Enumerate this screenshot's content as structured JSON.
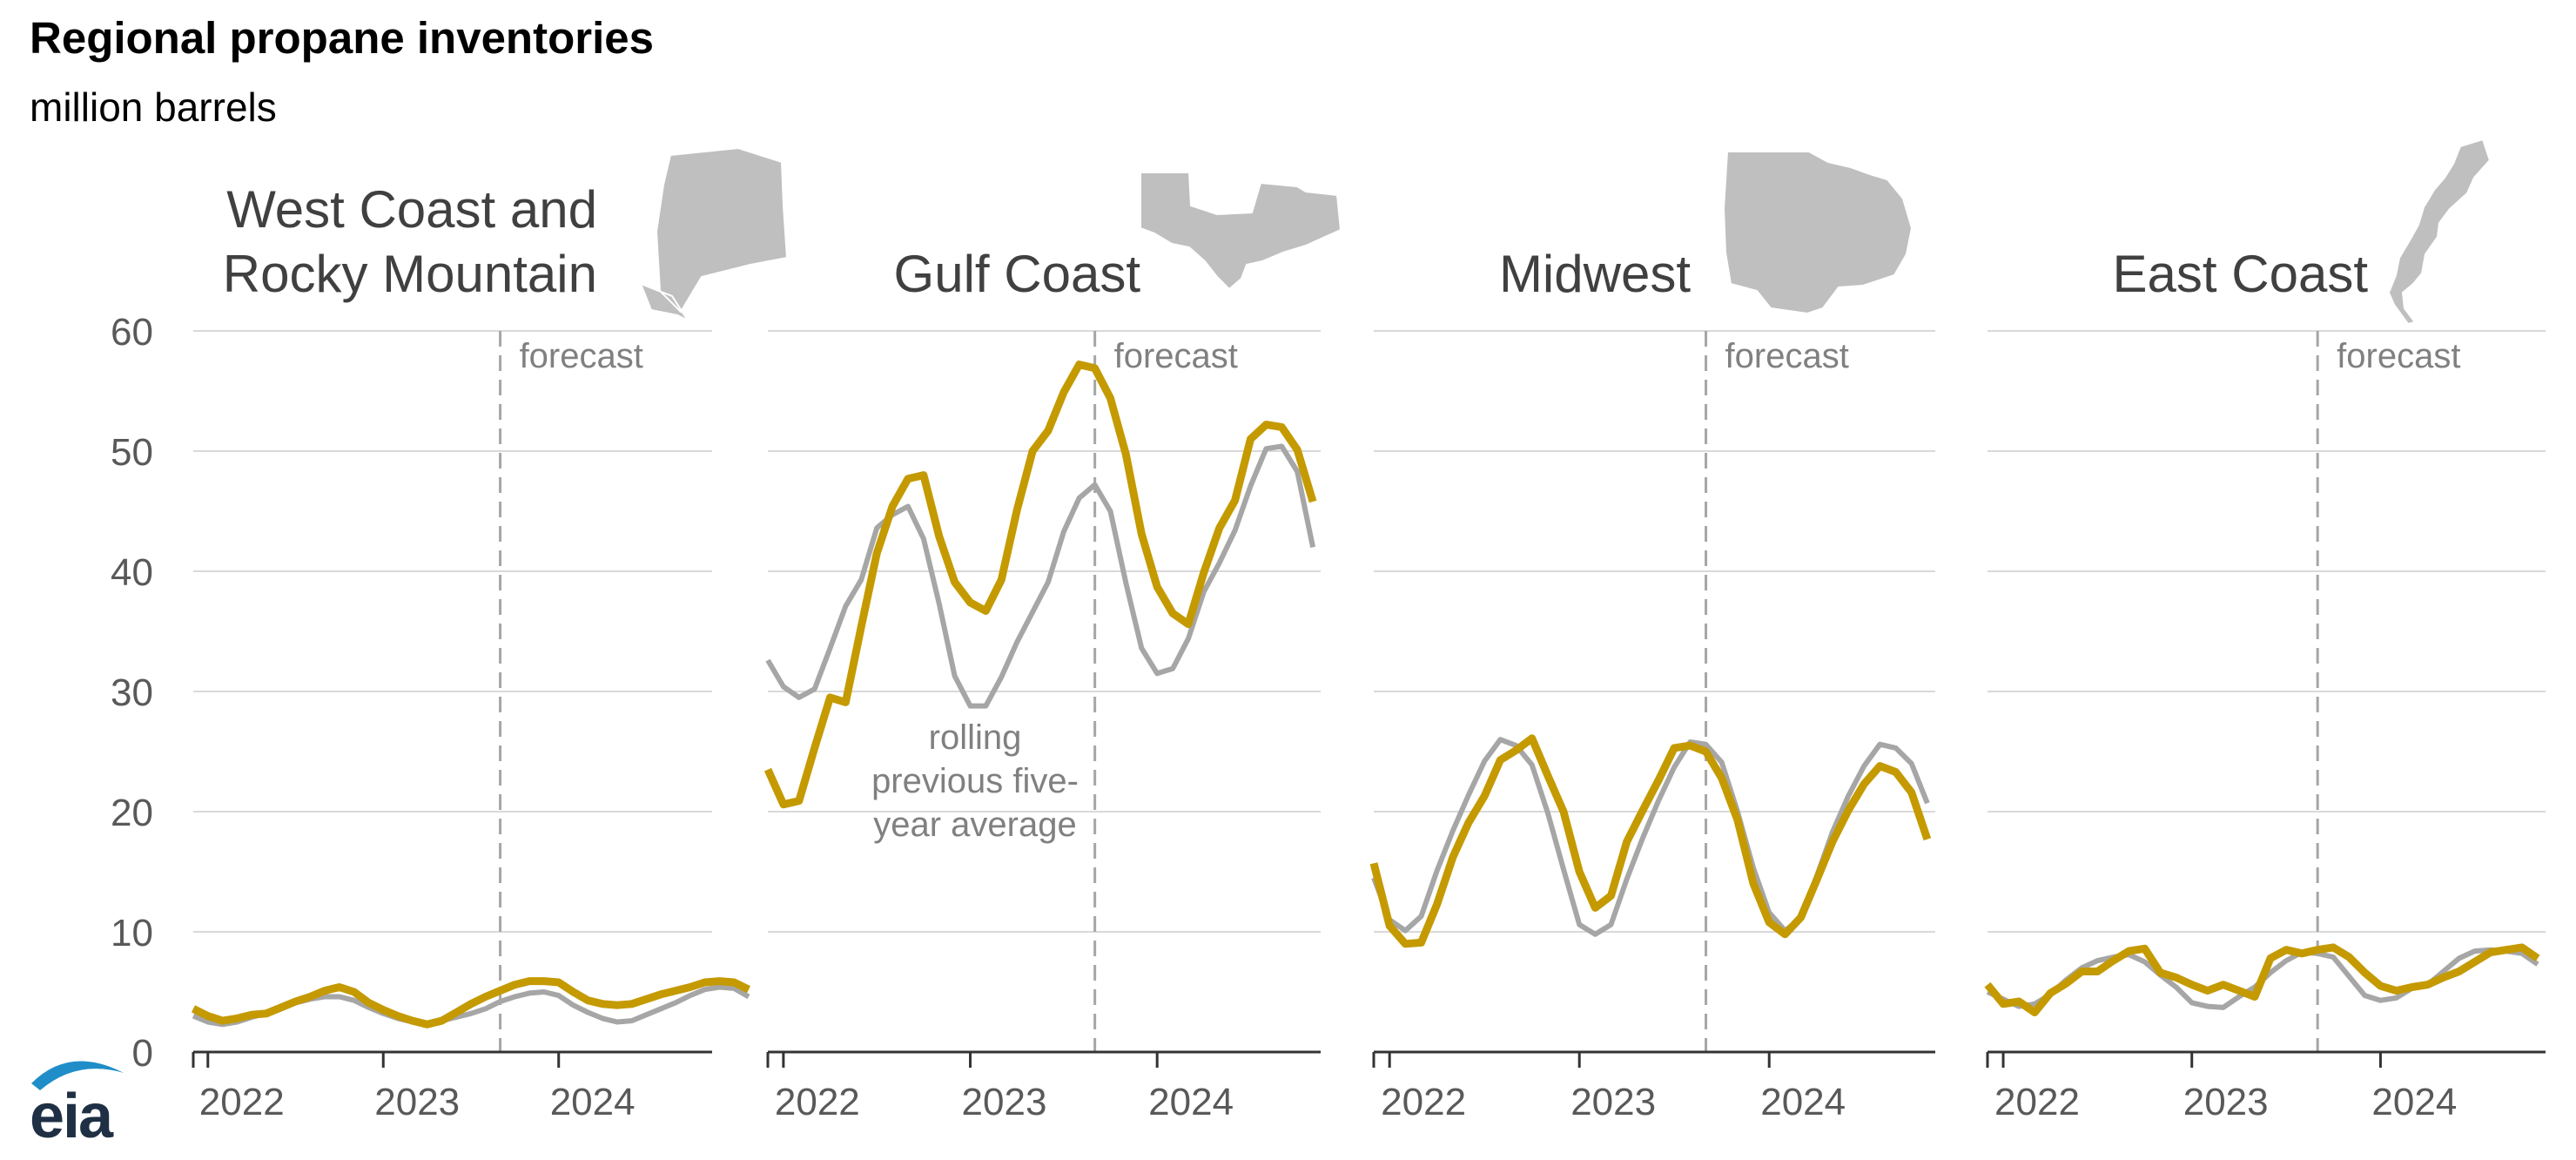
{
  "title": "Regional propane inventories",
  "subtitle": "million barrels",
  "colors": {
    "actual": "#c49a00",
    "average": "#a6a6a6",
    "grid": "#d9d9d9",
    "axis": "#333333",
    "text": "#595959",
    "forecast_label": "#808080",
    "map": "#bfbfbf"
  },
  "logo_text": "eia",
  "chart_data": {
    "type": "line",
    "y_ticks": [
      0,
      10,
      20,
      30,
      40,
      50,
      60
    ],
    "ylim": [
      0,
      60
    ],
    "x_ticks": [
      "2022",
      "2023",
      "2024"
    ],
    "x_range": [
      "2021-12",
      "2024-12"
    ],
    "forecast_start": "2023-09",
    "forecast_label": "forecast",
    "legend": "none",
    "grid": true,
    "series_labels": [
      "",
      ""
    ],
    "panels": [
      {
        "title_lines": [
          "West Coast and",
          "Rocky Mountain"
        ],
        "map_icon": "west-coast-rocky-mountain-map-icon",
        "annotation_lines": [],
        "actual": [
          3.6,
          3.0,
          2.6,
          2.8,
          3.1,
          3.2,
          3.7,
          4.2,
          4.6,
          5.1,
          5.4,
          5.0,
          4.1,
          3.5,
          3.0,
          2.6,
          2.3,
          2.6,
          3.3,
          4.0,
          4.6,
          5.1,
          5.6,
          5.9,
          5.9,
          5.8,
          5.0,
          4.3,
          4.0,
          3.9,
          4.0,
          4.4,
          4.8,
          5.1,
          5.4,
          5.8,
          5.9,
          5.8,
          5.2
        ],
        "average": [
          3.0,
          2.5,
          2.3,
          2.5,
          2.9,
          3.2,
          3.6,
          4.1,
          4.4,
          4.6,
          4.6,
          4.3,
          3.7,
          3.2,
          2.8,
          2.5,
          2.4,
          2.6,
          2.9,
          3.2,
          3.6,
          4.2,
          4.6,
          4.9,
          5.0,
          4.7,
          3.9,
          3.3,
          2.8,
          2.5,
          2.6,
          3.1,
          3.6,
          4.1,
          4.7,
          5.2,
          5.4,
          5.3,
          4.6
        ]
      },
      {
        "title_lines": [
          "Gulf Coast"
        ],
        "map_icon": "gulf-coast-map-icon",
        "annotation_lines": [
          "rolling",
          "previous five-",
          "year average"
        ],
        "actual": [
          23.5,
          20.6,
          20.9,
          25.3,
          29.5,
          29.1,
          35.4,
          41.5,
          45.4,
          47.7,
          48.0,
          42.9,
          39.1,
          37.4,
          36.7,
          39.3,
          45.1,
          50.0,
          51.7,
          54.9,
          57.2,
          56.9,
          54.4,
          49.7,
          43.1,
          38.7,
          36.5,
          35.6,
          39.9,
          43.6,
          45.9,
          51.0,
          52.2,
          52.0,
          50.1,
          45.8
        ],
        "average": [
          32.6,
          30.4,
          29.5,
          30.2,
          33.6,
          37.1,
          39.3,
          43.6,
          44.7,
          45.4,
          42.7,
          37.3,
          31.3,
          28.8,
          28.8,
          31.2,
          34.1,
          36.6,
          39.1,
          43.3,
          46.1,
          47.2,
          45.0,
          39.0,
          33.6,
          31.5,
          31.9,
          34.4,
          38.3,
          40.7,
          43.4,
          47.1,
          50.2,
          50.4,
          48.3,
          42.0
        ]
      },
      {
        "title_lines": [
          "Midwest"
        ],
        "map_icon": "midwest-map-icon",
        "annotation_lines": [],
        "actual": [
          15.7,
          10.5,
          9.0,
          9.1,
          12.3,
          16.2,
          19.1,
          21.3,
          24.3,
          25.1,
          26.1,
          23.0,
          20.0,
          15.0,
          12.0,
          13.0,
          17.5,
          20.1,
          22.6,
          25.3,
          25.5,
          25.0,
          22.8,
          19.3,
          14.0,
          10.8,
          9.8,
          11.2,
          14.3,
          17.5,
          20.1,
          22.3,
          23.8,
          23.3,
          21.6,
          17.7
        ],
        "average": [
          14.5,
          11.0,
          10.1,
          11.3,
          15.1,
          18.4,
          21.4,
          24.2,
          26.0,
          25.5,
          23.9,
          19.9,
          15.2,
          10.6,
          9.8,
          10.6,
          14.4,
          17.8,
          20.9,
          23.7,
          25.8,
          25.6,
          24.1,
          20.0,
          15.3,
          11.6,
          10.1,
          11.1,
          14.6,
          18.3,
          21.3,
          23.8,
          25.6,
          25.3,
          24.0,
          20.7
        ]
      },
      {
        "title_lines": [
          "East Coast"
        ],
        "map_icon": "east-coast-map-icon",
        "annotation_lines": [],
        "actual": [
          5.6,
          4.0,
          4.2,
          3.3,
          4.9,
          5.7,
          6.7,
          6.7,
          7.6,
          8.4,
          8.6,
          6.6,
          6.2,
          5.6,
          5.1,
          5.6,
          5.1,
          4.6,
          7.8,
          8.5,
          8.2,
          8.5,
          8.7,
          7.9,
          6.6,
          5.5,
          5.1,
          5.4,
          5.6,
          6.2,
          6.7,
          7.5,
          8.3,
          8.5,
          8.7,
          7.8
        ],
        "average": [
          5.0,
          4.4,
          3.8,
          4.0,
          4.8,
          6.0,
          7.0,
          7.6,
          7.9,
          8.1,
          7.5,
          6.4,
          5.4,
          4.1,
          3.8,
          3.7,
          4.6,
          5.4,
          6.6,
          7.6,
          8.3,
          8.2,
          7.9,
          6.3,
          4.7,
          4.3,
          4.5,
          5.3,
          5.6,
          6.7,
          7.8,
          8.4,
          8.5,
          8.4,
          8.2,
          7.3
        ]
      }
    ]
  }
}
